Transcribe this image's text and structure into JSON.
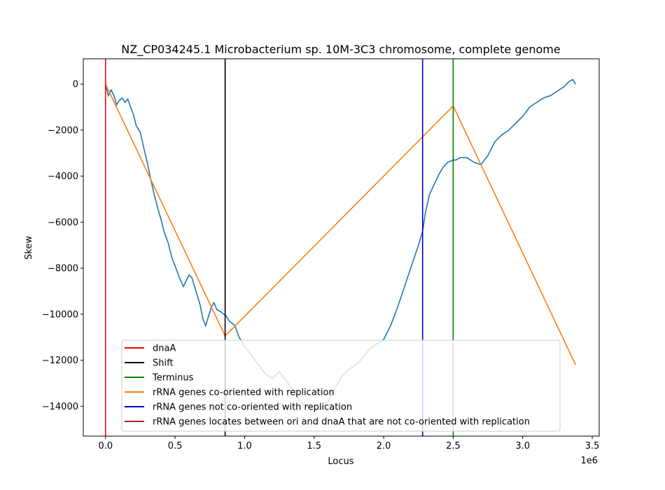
{
  "chart_data": {
    "type": "line",
    "title": "NZ_CP034245.1 Microbacterium sp. 10M-3C3 chromosome, complete genome",
    "xlabel": "Locus",
    "ylabel": "Skew",
    "x_offset_label": "1e6",
    "xlim": [
      -160000,
      3550000
    ],
    "ylim": [
      -15300,
      1100
    ],
    "xticks": [
      0,
      500000,
      1000000,
      1500000,
      2000000,
      2500000,
      3000000,
      3500000
    ],
    "xtick_labels": [
      "0.0",
      "0.5",
      "1.0",
      "1.5",
      "2.0",
      "2.5",
      "3.0",
      "3.5"
    ],
    "yticks": [
      0,
      -2000,
      -4000,
      -6000,
      -8000,
      -10000,
      -12000,
      -14000
    ],
    "ytick_labels": [
      "0",
      "−2000",
      "−4000",
      "−6000",
      "−8000",
      "−10000",
      "−12000",
      "−14000"
    ],
    "grid": false,
    "legend_position": "lower center",
    "colors": {
      "skew": "#1f77b4",
      "dnaA": "#ff0000",
      "shift": "#000000",
      "terminus": "#008000",
      "rrna_co": "#ff7f0e",
      "rrna_not_co": "#0000cd",
      "rrna_between": "#b22222"
    },
    "skew_series": {
      "name": "Skew",
      "x": [
        0,
        20000,
        40000,
        60000,
        80000,
        100000,
        120000,
        140000,
        160000,
        180000,
        200000,
        220000,
        250000,
        280000,
        300000,
        320000,
        350000,
        380000,
        400000,
        420000,
        450000,
        480000,
        500000,
        530000,
        560000,
        600000,
        620000,
        650000,
        680000,
        700000,
        720000,
        740000,
        760000,
        780000,
        800000,
        830000,
        850000,
        870000,
        890000,
        910000,
        930000,
        960000,
        1000000,
        1050000,
        1100000,
        1150000,
        1200000,
        1250000,
        1300000,
        1350000,
        1400000,
        1450000,
        1500000,
        1550000,
        1600000,
        1650000,
        1700000,
        1750000,
        1800000,
        1850000,
        1900000,
        1950000,
        2000000,
        2050000,
        2100000,
        2150000,
        2200000,
        2250000,
        2280000,
        2300000,
        2330000,
        2360000,
        2400000,
        2430000,
        2460000,
        2500000,
        2520000,
        2550000,
        2600000,
        2650000,
        2700000,
        2750000,
        2800000,
        2850000,
        2900000,
        2950000,
        3000000,
        3050000,
        3100000,
        3150000,
        3200000,
        3250000,
        3300000,
        3330000,
        3360000,
        3380000
      ],
      "values": [
        0,
        -500,
        -250,
        -500,
        -900,
        -700,
        -600,
        -800,
        -650,
        -1000,
        -1300,
        -1800,
        -2100,
        -2900,
        -3400,
        -4000,
        -4800,
        -5500,
        -5900,
        -6400,
        -6900,
        -7600,
        -7900,
        -8400,
        -8800,
        -8300,
        -8400,
        -9000,
        -9600,
        -10200,
        -10500,
        -10100,
        -9700,
        -9500,
        -9800,
        -9900,
        -10000,
        -10100,
        -10300,
        -10400,
        -10500,
        -11000,
        -11400,
        -11800,
        -12200,
        -12600,
        -12800,
        -12500,
        -12900,
        -13300,
        -13800,
        -14000,
        -14200,
        -14100,
        -13800,
        -13200,
        -12700,
        -12400,
        -12200,
        -11900,
        -11500,
        -11300,
        -11100,
        -10500,
        -9700,
        -8800,
        -7900,
        -7000,
        -6400,
        -5600,
        -4800,
        -4400,
        -3900,
        -3600,
        -3400,
        -3300,
        -3300,
        -3200,
        -3200,
        -3400,
        -3500,
        -3100,
        -2500,
        -2200,
        -2000,
        -1700,
        -1400,
        -1000,
        -800,
        -600,
        -500,
        -300,
        -100,
        100,
        200,
        0
      ]
    },
    "rrna_co_line": {
      "name": "rRNA genes co-oriented with replication",
      "x": [
        0,
        860000,
        2500000,
        3380000
      ],
      "values": [
        0,
        -10950,
        -950,
        -12200
      ]
    },
    "vertical_lines": [
      {
        "name": "dnaA",
        "x": 0,
        "color_key": "dnaA"
      },
      {
        "name": "Shift",
        "x": 860000,
        "color_key": "shift"
      },
      {
        "name": "rRNA genes not co-oriented with replication",
        "x": 2280000,
        "color_key": "rrna_not_co"
      },
      {
        "name": "Terminus",
        "x": 2500000,
        "color_key": "terminus"
      }
    ],
    "legend": [
      {
        "label": "dnaA",
        "color_key": "dnaA"
      },
      {
        "label": "Shift",
        "color_key": "shift"
      },
      {
        "label": "Terminus",
        "color_key": "terminus"
      },
      {
        "label": "rRNA genes co-oriented with replication",
        "color_key": "rrna_co"
      },
      {
        "label": "rRNA genes not co-oriented with replication",
        "color_key": "rrna_not_co"
      },
      {
        "label": "rRNA genes locates between ori and dnaA that are not co-oriented with replication",
        "color_key": "rrna_between"
      }
    ]
  }
}
